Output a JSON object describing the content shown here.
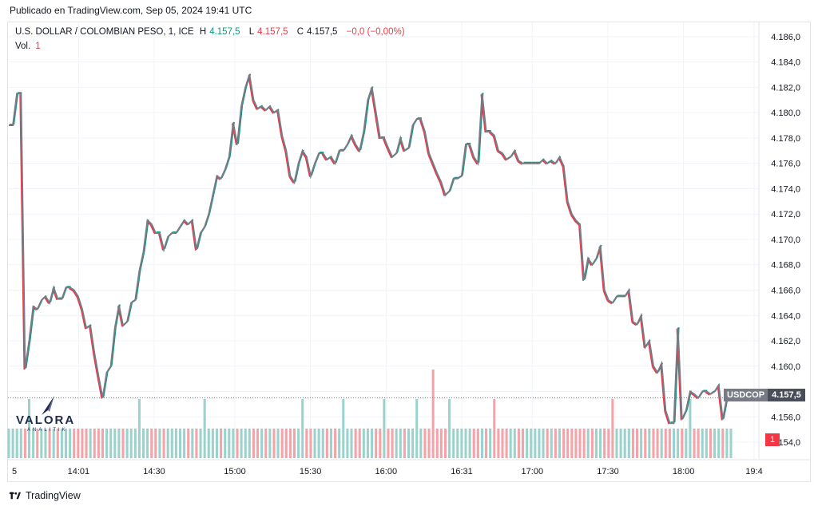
{
  "caption": "Publicado en TradingView.com, Sep 05, 2024 19:41 UTC",
  "legend": {
    "symbol": "U.S. DOLLAR / COLOMBIAN PESO, 1, ICE",
    "h_label": "H",
    "h_value": "4.157,5",
    "l_label": "L",
    "l_value": "4.157,5",
    "c_label": "C",
    "c_value": "4.157,5",
    "change": "−0,0 (−0,00%)",
    "vol_label": "Vol.",
    "vol_value": "1"
  },
  "price_tag": {
    "symbol": "USDCOP",
    "value": "4.157,5"
  },
  "vol_tag": "1",
  "logo": {
    "word": "VALORA",
    "sub": "ANALITIK"
  },
  "footer": "TradingView",
  "colors": {
    "up": "#089981",
    "down": "#f23645",
    "line": "#787b86",
    "vol_up": "#9bd3cc",
    "vol_down": "#f5a3a8"
  },
  "chart_data": {
    "type": "line",
    "title": "U.S. DOLLAR / COLOMBIAN PESO, 1, ICE",
    "xlabel": "",
    "ylabel": "",
    "ylim": [
      4153.5,
      4187
    ],
    "y_ticks": [
      4154,
      4156,
      4158,
      4160,
      4162,
      4164,
      4166,
      4168,
      4170,
      4172,
      4174,
      4176,
      4178,
      4180,
      4182,
      4184,
      4186
    ],
    "y_tick_labels": [
      "4.154,0",
      "4.156,0",
      "4.158,0",
      "4.160,0",
      "4.162,0",
      "4.164,0",
      "4.166,0",
      "4.168,0",
      "4.170,0",
      "4.172,0",
      "4.174,0",
      "4.176,0",
      "4.178,0",
      "4.180,0",
      "4.182,0",
      "4.184,0",
      "4.186,0"
    ],
    "x_ticks": [
      "5",
      "14:01",
      "14:30",
      "15:00",
      "15:30",
      "16:00",
      "16:31",
      "17:00",
      "17:30",
      "18:00",
      "19:4"
    ],
    "x_tick_pos": [
      0,
      14,
      29,
      45,
      60,
      75,
      90,
      104,
      119,
      134,
      148
    ],
    "last_price": 4157.5,
    "series": [
      {
        "name": "USDCOP",
        "values": [
          4179,
          4179,
          4181.5,
          4181.5,
          4159.8,
          4162,
          4164.7,
          4164.5,
          4165.2,
          4165.5,
          4165,
          4166.2,
          4165.3,
          4165.3,
          4166.2,
          4166.2,
          4166,
          4165.5,
          4164.5,
          4163,
          4163.2,
          4161,
          4159.2,
          4157.5,
          4159.5,
          4160,
          4163,
          4164.8,
          4163.2,
          4163.5,
          4165,
          4165.2,
          4167.5,
          4169,
          4171.5,
          4171.2,
          4170.5,
          4170.5,
          4169.2,
          4170.2,
          4170.5,
          4170.5,
          4171,
          4171.5,
          4171.2,
          4171.5,
          4169.2,
          4170.5,
          4171,
          4172,
          4173.5,
          4175,
          4174.8,
          4175.5,
          4176.5,
          4179.2,
          4177.5,
          4180.5,
          4182,
          4183,
          4181,
          4180.3,
          4180.5,
          4180.2,
          4180.5,
          4180,
          4180.2,
          4178.2,
          4177,
          4175,
          4174.5,
          4176,
          4177,
          4176.5,
          4175,
          4176,
          4176.8,
          4176.8,
          4176.3,
          4176.5,
          4176,
          4177,
          4177,
          4177.5,
          4178.2,
          4177.5,
          4177,
          4178.5,
          4181,
          4182,
          4180,
          4178,
          4178,
          4177.2,
          4176.5,
          4176.8,
          4178,
          4177,
          4177.2,
          4179,
          4179.5,
          4179.5,
          4178.5,
          4176.8,
          4176,
          4175.2,
          4174.5,
          4173.5,
          4173.8,
          4174.8,
          4174.8,
          4175,
          4177.5,
          4177.5,
          4176.5,
          4176,
          4181.5,
          4178.5,
          4178.5,
          4178.2,
          4177,
          4176.8,
          4176.3,
          4176.5,
          4177,
          4176.2,
          4176,
          4176,
          4176,
          4176,
          4176,
          4176.3,
          4176,
          4176.2,
          4176,
          4176.5,
          4175.8,
          4173,
          4172,
          4171.5,
          4171.2,
          4166.8,
          4168.5,
          4168,
          4168.5,
          4169.5,
          4166,
          4165.2,
          4165,
          4165.5,
          4165.5,
          4165.5,
          4166,
          4163.5,
          4163.3,
          4164,
          4161.5,
          4162,
          4160,
          4159.5,
          4160.2,
          4156.5,
          4155.5,
          4155.5,
          4163,
          4155.8,
          4156.5,
          4158,
          4157.8,
          4157.5,
          4158,
          4158,
          4157.8,
          4158,
          4158.5,
          4155.8,
          4157.5,
          4157.5
        ]
      }
    ],
    "volume": {
      "label": "Vol.",
      "values": [
        1,
        1,
        1,
        1,
        1,
        2,
        1,
        1,
        1,
        1,
        1,
        1,
        1,
        1,
        1,
        1,
        1,
        1,
        1,
        1,
        1,
        1,
        1,
        1,
        1,
        1,
        1,
        1,
        1,
        1,
        1,
        1,
        2,
        1,
        1,
        1,
        1,
        1,
        1,
        1,
        1,
        1,
        1,
        1,
        1,
        1,
        1,
        1,
        2,
        1,
        1,
        1,
        1,
        1,
        1,
        1,
        1,
        1,
        1,
        1,
        1,
        1,
        1,
        1,
        1,
        1,
        1,
        1,
        1,
        1,
        1,
        1,
        2,
        1,
        1,
        1,
        1,
        1,
        1,
        1,
        1,
        1,
        2,
        1,
        1,
        1,
        1,
        1,
        1,
        1,
        1,
        1,
        2,
        1,
        1,
        1,
        1,
        1,
        1,
        1,
        2,
        1,
        1,
        1,
        3,
        1,
        1,
        1,
        2,
        1,
        1,
        1,
        1,
        1,
        1,
        1,
        1,
        1,
        1,
        2,
        1,
        1,
        1,
        1,
        1,
        1,
        1,
        1,
        1,
        1,
        1,
        1,
        1,
        1,
        1,
        1,
        1,
        1,
        1,
        1,
        1,
        1,
        1,
        1,
        1,
        1,
        1,
        1,
        2,
        1,
        1,
        1,
        1,
        1,
        1,
        1,
        1,
        1,
        1,
        1,
        1,
        1,
        1,
        1,
        1,
        1,
        1,
        2,
        1,
        1,
        1,
        1,
        1,
        1,
        1,
        1,
        1,
        1,
        1,
        1,
        1,
        1
      ],
      "max": 4
    }
  }
}
